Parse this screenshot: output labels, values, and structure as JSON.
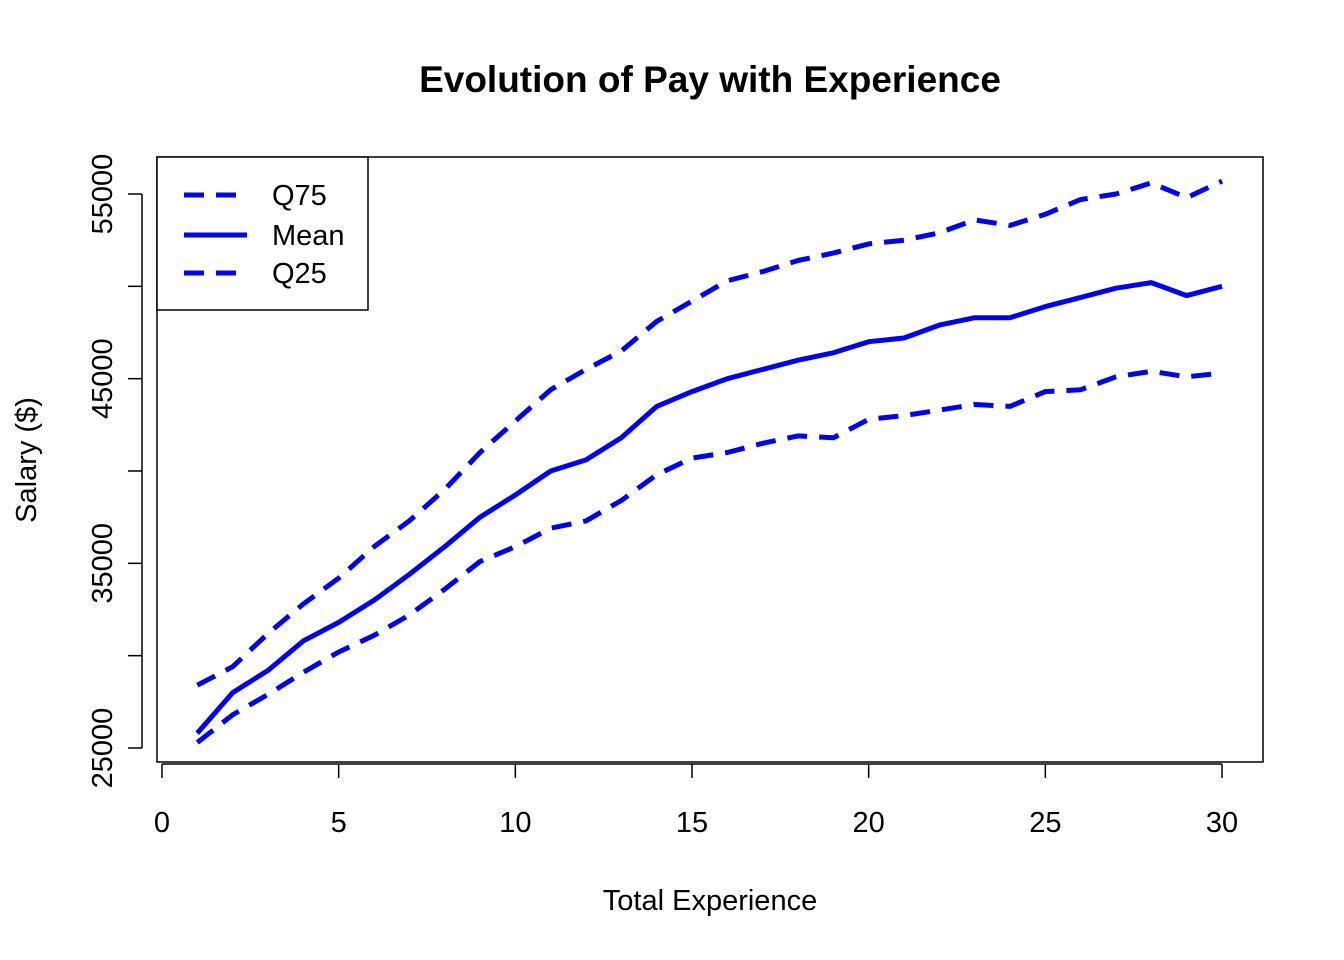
{
  "chart_data": {
    "type": "line",
    "title": "Evolution of Pay with Experience",
    "xlabel": "Total Experience",
    "ylabel": "Salary ($)",
    "xlim": [
      0,
      30
    ],
    "ylim": [
      25000,
      55000
    ],
    "xticks": [
      0,
      5,
      10,
      15,
      20,
      25,
      30
    ],
    "yticks": [
      25000,
      30000,
      35000,
      40000,
      45000,
      50000,
      55000
    ],
    "ytick_labels": [
      "25000",
      "",
      "35000",
      "",
      "45000",
      "",
      "55000"
    ],
    "grid": false,
    "legend_position": "top-left",
    "x": [
      1,
      2,
      3,
      4,
      5,
      6,
      7,
      8,
      9,
      10,
      11,
      12,
      13,
      14,
      15,
      16,
      17,
      18,
      19,
      20,
      21,
      22,
      23,
      24,
      25,
      26,
      27,
      28,
      29,
      30
    ],
    "series": [
      {
        "name": "Q75",
        "style": "dashed",
        "color": "#0000ff",
        "values": [
          28400,
          29400,
          31200,
          32800,
          34200,
          35900,
          37300,
          39000,
          41000,
          42700,
          44400,
          45500,
          46500,
          48100,
          49200,
          50300,
          50800,
          51400,
          51800,
          52300,
          52500,
          52900,
          53600,
          53300,
          53900,
          54700,
          55000,
          55600,
          54800,
          55700
        ]
      },
      {
        "name": "Mean",
        "style": "solid",
        "color": "#0000ff",
        "values": [
          25800,
          28000,
          29200,
          30800,
          31800,
          33000,
          34400,
          35900,
          37500,
          38700,
          40000,
          40600,
          41800,
          43500,
          44300,
          45000,
          45500,
          46000,
          46400,
          47000,
          47200,
          47900,
          48300,
          48300,
          48900,
          49400,
          49900,
          50200,
          49500,
          50000
        ]
      },
      {
        "name": "Q25",
        "style": "dashed",
        "color": "#0000ff",
        "values": [
          25300,
          26800,
          27900,
          29100,
          30200,
          31100,
          32200,
          33600,
          35100,
          35900,
          36900,
          37300,
          38400,
          39800,
          40700,
          41000,
          41500,
          41900,
          41800,
          42800,
          43000,
          43300,
          43600,
          43500,
          44300,
          44400,
          45100,
          45400,
          45100,
          45300
        ]
      }
    ]
  }
}
